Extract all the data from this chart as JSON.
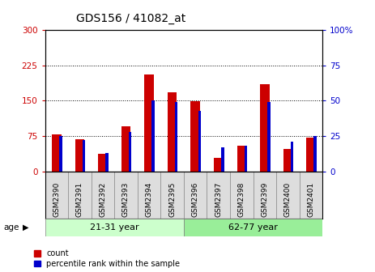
{
  "title": "GDS156 / 41082_at",
  "samples": [
    "GSM2390",
    "GSM2391",
    "GSM2392",
    "GSM2393",
    "GSM2394",
    "GSM2395",
    "GSM2396",
    "GSM2397",
    "GSM2398",
    "GSM2399",
    "GSM2400",
    "GSM2401"
  ],
  "count_values": [
    78,
    68,
    38,
    95,
    205,
    168,
    148,
    28,
    55,
    185,
    48,
    72
  ],
  "percentile_values": [
    25,
    22,
    13,
    28,
    50,
    49,
    43,
    17,
    18,
    49,
    21,
    25
  ],
  "group1_label": "21-31 year",
  "group2_label": "62-77 year",
  "group1_count": 6,
  "ylim_left": [
    0,
    300
  ],
  "ylim_right": [
    0,
    100
  ],
  "yticks_left": [
    0,
    75,
    150,
    225,
    300
  ],
  "yticks_right": [
    0,
    25,
    50,
    75,
    100
  ],
  "bar_color": "#cc0000",
  "percentile_color": "#0000cc",
  "group1_color": "#ccffcc",
  "group2_color": "#99ee99",
  "bg_color": "#ffffff",
  "grid_color": "#000000",
  "left_tick_color": "#cc0000",
  "right_tick_color": "#0000cc",
  "age_label": "age",
  "legend_count": "count",
  "legend_percentile": "percentile rank within the sample"
}
